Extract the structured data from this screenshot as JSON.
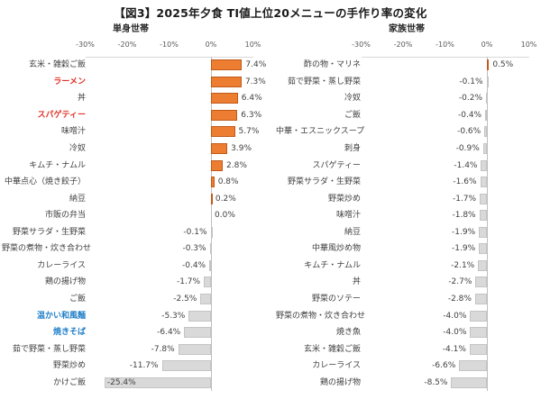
{
  "title": "【図3】2025年夕食 TI値上位20メニューの手作り率の変化",
  "colors": {
    "bar_positive": "#ED7D31",
    "bar_positive_border": "#C05A1A",
    "bar_negative": "#D9D9D9",
    "bar_negative_border": "#C4C4C4",
    "label_default": "#404040",
    "label_red": "#E03226",
    "label_blue": "#1F7EC8",
    "value_label": "#3F3F3F",
    "axis_line": "#BFBFBF",
    "plot_top_line": "#D9D9D9",
    "tick_label": "#595959"
  },
  "chart_data": [
    {
      "type": "bar",
      "orientation": "horizontal",
      "title": "単身世帯",
      "xlim": [
        -30,
        10
      ],
      "grid": false,
      "xticks": [
        {
          "value": -30,
          "label": "-30%"
        },
        {
          "value": -20,
          "label": "-20%"
        },
        {
          "value": -10,
          "label": "-10%"
        },
        {
          "value": 0,
          "label": "0%"
        },
        {
          "value": 10,
          "label": "10%"
        }
      ],
      "rows": [
        {
          "category": "玄米・雑穀ご飯",
          "value": 7.4,
          "label": "7.4%",
          "highlight": "none"
        },
        {
          "category": "ラーメン",
          "value": 7.3,
          "label": "7.3%",
          "highlight": "red"
        },
        {
          "category": "丼",
          "value": 6.4,
          "label": "6.4%",
          "highlight": "none"
        },
        {
          "category": "スパゲティー",
          "value": 6.3,
          "label": "6.3%",
          "highlight": "red"
        },
        {
          "category": "味噌汁",
          "value": 5.7,
          "label": "5.7%",
          "highlight": "none"
        },
        {
          "category": "冷奴",
          "value": 3.9,
          "label": "3.9%",
          "highlight": "none"
        },
        {
          "category": "キムチ・ナムル",
          "value": 2.8,
          "label": "2.8%",
          "highlight": "none"
        },
        {
          "category": "中華点心（焼き餃子）",
          "value": 0.8,
          "label": "0.8%",
          "highlight": "none"
        },
        {
          "category": "納豆",
          "value": 0.2,
          "label": "0.2%",
          "highlight": "none"
        },
        {
          "category": "市販の弁当",
          "value": 0.0,
          "label": "0.0%",
          "highlight": "none"
        },
        {
          "category": "野菜サラダ・生野菜",
          "value": -0.1,
          "label": "-0.1%",
          "highlight": "none"
        },
        {
          "category": "野菜の煮物・炊き合わせ",
          "value": -0.3,
          "label": "-0.3%",
          "highlight": "none"
        },
        {
          "category": "カレーライス",
          "value": -0.4,
          "label": "-0.4%",
          "highlight": "none"
        },
        {
          "category": "鶏の揚げ物",
          "value": -1.7,
          "label": "-1.7%",
          "highlight": "none"
        },
        {
          "category": "ご飯",
          "value": -2.5,
          "label": "-2.5%",
          "highlight": "none"
        },
        {
          "category": "温かい和風麺",
          "value": -5.3,
          "label": "-5.3%",
          "highlight": "blue"
        },
        {
          "category": "焼きそば",
          "value": -6.4,
          "label": "-6.4%",
          "highlight": "blue"
        },
        {
          "category": "茹で野菜・蒸し野菜",
          "value": -7.8,
          "label": "-7.8%",
          "highlight": "none"
        },
        {
          "category": "野菜炒め",
          "value": -11.7,
          "label": "-11.7%",
          "highlight": "none"
        },
        {
          "category": "かけご飯",
          "value": -25.4,
          "label": "-25.4%",
          "highlight": "none"
        }
      ]
    },
    {
      "type": "bar",
      "orientation": "horizontal",
      "title": "家族世帯",
      "xlim": [
        -30,
        10
      ],
      "grid": false,
      "xticks": [
        {
          "value": -30,
          "label": "-30%"
        },
        {
          "value": -20,
          "label": "-20%"
        },
        {
          "value": -10,
          "label": "-10%"
        },
        {
          "value": 0,
          "label": "0%"
        },
        {
          "value": 10,
          "label": "10%"
        }
      ],
      "rows": [
        {
          "category": "酢の物・マリネ",
          "value": 0.5,
          "label": "0.5%",
          "highlight": "none"
        },
        {
          "category": "茹で野菜・蒸し野菜",
          "value": -0.1,
          "label": "-0.1%",
          "highlight": "none"
        },
        {
          "category": "冷奴",
          "value": -0.2,
          "label": "-0.2%",
          "highlight": "none"
        },
        {
          "category": "ご飯",
          "value": -0.4,
          "label": "-0.4%",
          "highlight": "none"
        },
        {
          "category": "中華・エスニックスープ",
          "value": -0.6,
          "label": "-0.6%",
          "highlight": "none"
        },
        {
          "category": "刺身",
          "value": -0.9,
          "label": "-0.9%",
          "highlight": "none"
        },
        {
          "category": "スパゲティー",
          "value": -1.4,
          "label": "-1.4%",
          "highlight": "none"
        },
        {
          "category": "野菜サラダ・生野菜",
          "value": -1.6,
          "label": "-1.6%",
          "highlight": "none"
        },
        {
          "category": "野菜炒め",
          "value": -1.7,
          "label": "-1.7%",
          "highlight": "none"
        },
        {
          "category": "味噌汁",
          "value": -1.8,
          "label": "-1.8%",
          "highlight": "none"
        },
        {
          "category": "納豆",
          "value": -1.9,
          "label": "-1.9%",
          "highlight": "none"
        },
        {
          "category": "中華風炒め物",
          "value": -1.9,
          "label": "-1.9%",
          "highlight": "none"
        },
        {
          "category": "キムチ・ナムル",
          "value": -2.1,
          "label": "-2.1%",
          "highlight": "none"
        },
        {
          "category": "丼",
          "value": -2.7,
          "label": "-2.7%",
          "highlight": "none"
        },
        {
          "category": "野菜のソテー",
          "value": -2.8,
          "label": "-2.8%",
          "highlight": "none"
        },
        {
          "category": "野菜の煮物・炊き合わせ",
          "value": -4.0,
          "label": "-4.0%",
          "highlight": "none"
        },
        {
          "category": "焼き魚",
          "value": -4.0,
          "label": "-4.0%",
          "highlight": "none"
        },
        {
          "category": "玄米・雑穀ご飯",
          "value": -4.1,
          "label": "-4.1%",
          "highlight": "none"
        },
        {
          "category": "カレーライス",
          "value": -6.6,
          "label": "-6.6%",
          "highlight": "none"
        },
        {
          "category": "鶏の揚げ物",
          "value": -8.5,
          "label": "-8.5%",
          "highlight": "none"
        }
      ]
    }
  ]
}
